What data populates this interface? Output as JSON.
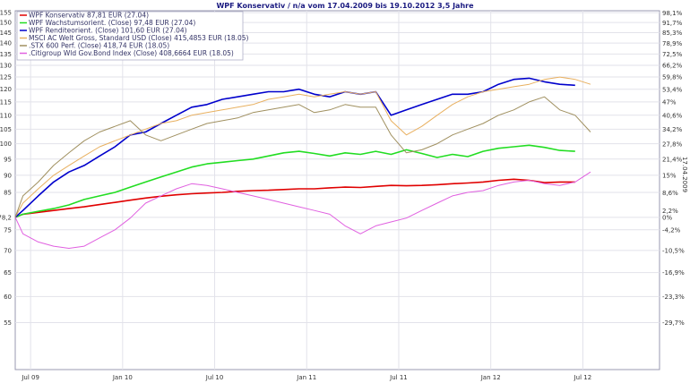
{
  "chart_data": {
    "type": "line",
    "title": "WPF Konservativ / n/a vom 17.04.2009 bis 19.10.2012 3,5 Jahre",
    "end_date_label": "17.04.2009",
    "grid": true,
    "legend_position": "top-left",
    "x_ticks": [
      "Jul 09",
      "Jan 10",
      "Jul 10",
      "Jan 11",
      "Jul 11",
      "Jan 12",
      "Jul 12"
    ],
    "x_tick_index": [
      0.5,
      6.5,
      12.5,
      18.5,
      24.5,
      30.5,
      36.5
    ],
    "x_range": [
      -0.5,
      41.5
    ],
    "y_left_ticks": [
      "155",
      "150",
      "145",
      "140",
      "135",
      "130",
      "125",
      "120",
      "115",
      "110",
      "105",
      "100",
      "95",
      "90",
      "85",
      "78,2",
      "75",
      "70",
      "65",
      "60",
      "55"
    ],
    "y_left_tick_values": [
      155,
      150,
      145,
      140,
      135,
      130,
      125,
      120,
      115,
      110,
      105,
      100,
      95,
      90,
      85,
      78.2,
      75,
      70,
      65,
      60,
      55
    ],
    "y_left_log": true,
    "y_left_range": [
      47,
      156
    ],
    "y_right_ticks": [
      "98,1%",
      "91,7%",
      "85,3%",
      "78,9%",
      "72,5%",
      "66,2%",
      "59,8%",
      "53,4%",
      "47%",
      "40,6%",
      "34,2%",
      "27,8%",
      "21,4%",
      "15%",
      "8,6%",
      "2,2%",
      "0%",
      "-4,2%",
      "-10,5%",
      "-16,9%",
      "-23,3%",
      "-29,7%"
    ],
    "y_right_tick_values": [
      98.1,
      91.7,
      85.3,
      78.9,
      72.5,
      66.2,
      59.8,
      53.4,
      47,
      40.6,
      34.2,
      27.8,
      21.4,
      15,
      8.6,
      2.2,
      0,
      -4.2,
      -10.5,
      -16.9,
      -23.3,
      -29.7
    ],
    "series": [
      {
        "name": "WPF Konservativ 87,81 EUR (27.04)",
        "color": "#e00000",
        "x": [
          -0.5,
          0,
          1,
          2,
          3,
          4,
          5,
          6,
          7,
          8,
          9,
          10,
          11,
          12,
          13,
          14,
          15,
          16,
          17,
          18,
          19,
          20,
          21,
          22,
          23,
          24,
          25,
          26,
          27,
          28,
          29,
          30,
          31,
          32,
          33,
          34,
          35,
          36
        ],
        "y": [
          78.2,
          79,
          79.5,
          80,
          80.5,
          81,
          81.6,
          82.2,
          82.8,
          83.4,
          83.9,
          84.3,
          84.6,
          84.8,
          85,
          85.3,
          85.5,
          85.6,
          85.8,
          86,
          86,
          86.3,
          86.5,
          86.4,
          86.7,
          87,
          86.9,
          87,
          87.2,
          87.5,
          87.7,
          88,
          88.5,
          88.8,
          88.5,
          87.8,
          88,
          88
        ]
      },
      {
        "name": "WPF Wachstumsorient. (Close) 97,48 EUR (27.04)",
        "color": "#22dd22",
        "x": [
          -0.5,
          0,
          1,
          2,
          3,
          4,
          5,
          6,
          7,
          8,
          9,
          10,
          11,
          12,
          13,
          14,
          15,
          16,
          17,
          18,
          19,
          20,
          21,
          22,
          23,
          24,
          25,
          26,
          27,
          28,
          29,
          30,
          31,
          32,
          33,
          34,
          35,
          36
        ],
        "y": [
          78.2,
          79,
          79.8,
          80.5,
          81.5,
          83,
          84,
          85,
          86.5,
          88,
          89.5,
          91,
          92.5,
          93.5,
          94,
          94.5,
          95,
          96,
          97,
          97.5,
          96.8,
          96,
          97,
          96.5,
          97.5,
          96.5,
          98,
          96.8,
          95.5,
          96.5,
          95.8,
          97.5,
          98.5,
          99,
          99.5,
          98.8,
          97.8,
          97.5
        ]
      },
      {
        "name": "WPF Renditeorient. (Close) 101,60 EUR (27.04)",
        "color": "#0000cc",
        "x": [
          -0.5,
          0,
          1,
          2,
          3,
          4,
          5,
          6,
          7,
          8,
          9,
          10,
          11,
          12,
          13,
          14,
          15,
          16,
          17,
          18,
          19,
          20,
          21,
          22,
          23,
          24,
          25,
          26,
          27,
          28,
          29,
          30,
          31,
          32,
          33,
          34,
          35,
          36
        ],
        "y": [
          78.2,
          80,
          84,
          88,
          91,
          93,
          96,
          99,
          103,
          104,
          107,
          110,
          113,
          114,
          116,
          117,
          118,
          119,
          119,
          120,
          118,
          117,
          119,
          118,
          119,
          110,
          112,
          114,
          116,
          118,
          118,
          119,
          122,
          124,
          124.5,
          123,
          122,
          121.6
        ]
      },
      {
        "name": "MSCI AC Welt Gross, Standard USD (Close) 415,4853 EUR (18.05)",
        "color": "#e8b060",
        "x": [
          -0.5,
          0,
          1,
          2,
          3,
          4,
          5,
          6,
          7,
          8,
          9,
          10,
          11,
          12,
          13,
          14,
          15,
          16,
          17,
          18,
          19,
          20,
          21,
          22,
          23,
          24,
          25,
          26,
          27,
          28,
          29,
          30,
          31,
          32,
          33,
          34,
          35,
          36,
          37
        ],
        "y": [
          78.2,
          82,
          86,
          90,
          93,
          96,
          99,
          101,
          103,
          105,
          107,
          108,
          110,
          111,
          112,
          113,
          114,
          116,
          117,
          118,
          117,
          118,
          119,
          118,
          119,
          108,
          103,
          106,
          110,
          114,
          117,
          119,
          120,
          121,
          122,
          124,
          125,
          124,
          122
        ]
      },
      {
        "name": ".STX 600 Perf. (Close) 418,74 EUR (18.05)",
        "color": "#a09060",
        "x": [
          -0.5,
          0,
          1,
          2,
          3,
          4,
          5,
          6,
          7,
          8,
          9,
          10,
          11,
          12,
          13,
          14,
          15,
          16,
          17,
          18,
          19,
          20,
          21,
          22,
          23,
          24,
          25,
          26,
          27,
          28,
          29,
          30,
          31,
          32,
          33,
          34,
          35,
          36,
          37
        ],
        "y": [
          78.2,
          84,
          88,
          93,
          97,
          101,
          104,
          106,
          108,
          103,
          101,
          103,
          105,
          107,
          108,
          109,
          111,
          112,
          113,
          114,
          111,
          112,
          114,
          113,
          113,
          103,
          97,
          98,
          100,
          103,
          105,
          107,
          110,
          112,
          115,
          117,
          112,
          110,
          104
        ]
      },
      {
        "name": ".Citigroup Wld Gov.Bond Index (Close) 408,6664 EUR (18.05)",
        "color": "#e060e0",
        "x": [
          -0.5,
          0,
          1,
          2,
          3,
          4,
          5,
          6,
          7,
          8,
          9,
          10,
          11,
          12,
          13,
          14,
          15,
          16,
          17,
          18,
          19,
          20,
          21,
          22,
          23,
          24,
          25,
          26,
          27,
          28,
          29,
          30,
          31,
          32,
          33,
          34,
          35,
          36,
          37
        ],
        "y": [
          78.2,
          74,
          72,
          71,
          70.5,
          71,
          73,
          75,
          78,
          82,
          84,
          86,
          87.5,
          87,
          86,
          85,
          84,
          83,
          82,
          81,
          80,
          79,
          76,
          74,
          76,
          77,
          78,
          80,
          82,
          84,
          85,
          85.5,
          87,
          88,
          88.5,
          87.5,
          87,
          88,
          91
        ]
      }
    ]
  }
}
